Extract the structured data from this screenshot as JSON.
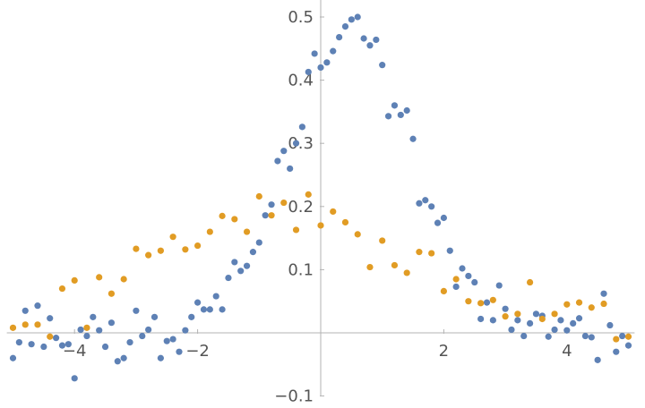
{
  "chart_data": {
    "type": "scatter",
    "title": "",
    "xlabel": "",
    "ylabel": "",
    "xlim": [
      -5.1,
      5.1
    ],
    "ylim": [
      -0.1,
      0.53
    ],
    "grid": false,
    "axes_origin": [
      0,
      0
    ],
    "x_ticks": [
      {
        "value": -4,
        "label": "−4"
      },
      {
        "value": -2,
        "label": "−2"
      },
      {
        "value": 2,
        "label": "2"
      },
      {
        "value": 4,
        "label": "4"
      }
    ],
    "y_ticks": [
      {
        "value": -0.1,
        "label": "−0.1"
      },
      {
        "value": 0.1,
        "label": "0.1"
      },
      {
        "value": 0.2,
        "label": "0.2"
      },
      {
        "value": 0.3,
        "label": "0.3"
      },
      {
        "value": 0.4,
        "label": "0.4"
      },
      {
        "value": 0.5,
        "label": "0.5"
      }
    ],
    "series": [
      {
        "color": "#5e81b5",
        "points": [
          [
            -5.0,
            -0.04
          ],
          [
            -4.9,
            -0.015
          ],
          [
            -4.8,
            0.035
          ],
          [
            -4.7,
            -0.018
          ],
          [
            -4.6,
            0.043
          ],
          [
            -4.5,
            -0.022
          ],
          [
            -4.4,
            0.023
          ],
          [
            -4.3,
            -0.008
          ],
          [
            -4.2,
            -0.02
          ],
          [
            -4.1,
            -0.018
          ],
          [
            -4.0,
            -0.072
          ],
          [
            -3.9,
            0.005
          ],
          [
            -3.8,
            -0.005
          ],
          [
            -3.7,
            0.025
          ],
          [
            -3.6,
            0.004
          ],
          [
            -3.5,
            -0.022
          ],
          [
            -3.4,
            0.016
          ],
          [
            -3.3,
            -0.045
          ],
          [
            -3.2,
            -0.04
          ],
          [
            -3.1,
            -0.015
          ],
          [
            -3.0,
            0.035
          ],
          [
            -2.9,
            -0.005
          ],
          [
            -2.8,
            0.005
          ],
          [
            -2.7,
            0.025
          ],
          [
            -2.6,
            -0.04
          ],
          [
            -2.5,
            -0.013
          ],
          [
            -2.4,
            -0.01
          ],
          [
            -2.3,
            -0.03
          ],
          [
            -2.2,
            0.004
          ],
          [
            -2.1,
            0.025
          ],
          [
            -2.0,
            0.048
          ],
          [
            -1.9,
            0.037
          ],
          [
            -1.8,
            0.037
          ],
          [
            -1.7,
            0.058
          ],
          [
            -1.6,
            0.037
          ],
          [
            -1.5,
            0.087
          ],
          [
            -1.4,
            0.112
          ],
          [
            -1.3,
            0.098
          ],
          [
            -1.2,
            0.106
          ],
          [
            -1.1,
            0.128
          ],
          [
            -1.0,
            0.143
          ],
          [
            -0.9,
            0.186
          ],
          [
            -0.8,
            0.203
          ],
          [
            -0.7,
            0.272
          ],
          [
            -0.6,
            0.288
          ],
          [
            -0.5,
            0.26
          ],
          [
            -0.4,
            0.3
          ],
          [
            -0.3,
            0.326
          ],
          [
            -0.2,
            0.413
          ],
          [
            -0.1,
            0.442
          ],
          [
            0.0,
            0.42
          ],
          [
            0.1,
            0.428
          ],
          [
            0.2,
            0.446
          ],
          [
            0.3,
            0.468
          ],
          [
            0.4,
            0.485
          ],
          [
            0.5,
            0.496
          ],
          [
            0.6,
            0.5
          ],
          [
            0.7,
            0.466
          ],
          [
            0.8,
            0.455
          ],
          [
            0.9,
            0.464
          ],
          [
            1.0,
            0.424
          ],
          [
            1.1,
            0.343
          ],
          [
            1.2,
            0.36
          ],
          [
            1.3,
            0.345
          ],
          [
            1.4,
            0.352
          ],
          [
            1.5,
            0.307
          ],
          [
            1.6,
            0.205
          ],
          [
            1.7,
            0.21
          ],
          [
            1.8,
            0.2
          ],
          [
            1.9,
            0.174
          ],
          [
            2.0,
            0.182
          ],
          [
            2.1,
            0.13
          ],
          [
            2.2,
            0.073
          ],
          [
            2.3,
            0.102
          ],
          [
            2.4,
            0.09
          ],
          [
            2.5,
            0.08
          ],
          [
            2.6,
            0.022
          ],
          [
            2.7,
            0.048
          ],
          [
            2.8,
            0.02
          ],
          [
            2.9,
            0.075
          ],
          [
            3.0,
            0.038
          ],
          [
            3.1,
            0.005
          ],
          [
            3.2,
            0.02
          ],
          [
            3.3,
            -0.005
          ],
          [
            3.4,
            0.015
          ],
          [
            3.5,
            0.03
          ],
          [
            3.6,
            0.027
          ],
          [
            3.7,
            -0.006
          ],
          [
            3.8,
            0.005
          ],
          [
            3.9,
            0.02
          ],
          [
            4.0,
            0.004
          ],
          [
            4.1,
            0.015
          ],
          [
            4.2,
            0.023
          ],
          [
            4.3,
            -0.005
          ],
          [
            4.4,
            -0.007
          ],
          [
            4.5,
            -0.043
          ],
          [
            4.6,
            0.062
          ],
          [
            4.7,
            0.012
          ],
          [
            4.8,
            -0.03
          ],
          [
            4.9,
            -0.005
          ],
          [
            5.0,
            -0.02
          ]
        ]
      },
      {
        "color": "#e19c24",
        "points": [
          [
            -5.0,
            0.008
          ],
          [
            -4.8,
            0.013
          ],
          [
            -4.6,
            0.013
          ],
          [
            -4.4,
            -0.006
          ],
          [
            -4.2,
            0.07
          ],
          [
            -4.0,
            0.083
          ],
          [
            -3.8,
            0.008
          ],
          [
            -3.6,
            0.088
          ],
          [
            -3.4,
            0.062
          ],
          [
            -3.2,
            0.085
          ],
          [
            -3.0,
            0.133
          ],
          [
            -2.8,
            0.123
          ],
          [
            -2.6,
            0.13
          ],
          [
            -2.4,
            0.152
          ],
          [
            -2.2,
            0.132
          ],
          [
            -2.0,
            0.138
          ],
          [
            -1.8,
            0.16
          ],
          [
            -1.6,
            0.185
          ],
          [
            -1.4,
            0.18
          ],
          [
            -1.2,
            0.16
          ],
          [
            -1.0,
            0.216
          ],
          [
            -0.8,
            0.186
          ],
          [
            -0.6,
            0.206
          ],
          [
            -0.4,
            0.163
          ],
          [
            -0.2,
            0.219
          ],
          [
            0.0,
            0.17
          ],
          [
            0.2,
            0.192
          ],
          [
            0.4,
            0.175
          ],
          [
            0.6,
            0.156
          ],
          [
            0.8,
            0.104
          ],
          [
            1.0,
            0.146
          ],
          [
            1.2,
            0.107
          ],
          [
            1.4,
            0.095
          ],
          [
            1.6,
            0.128
          ],
          [
            1.8,
            0.126
          ],
          [
            2.0,
            0.066
          ],
          [
            2.2,
            0.085
          ],
          [
            2.4,
            0.05
          ],
          [
            2.6,
            0.047
          ],
          [
            2.8,
            0.052
          ],
          [
            3.0,
            0.026
          ],
          [
            3.2,
            0.03
          ],
          [
            3.4,
            0.08
          ],
          [
            3.6,
            0.022
          ],
          [
            3.8,
            0.03
          ],
          [
            4.0,
            0.045
          ],
          [
            4.2,
            0.048
          ],
          [
            4.4,
            0.04
          ],
          [
            4.6,
            0.046
          ],
          [
            4.8,
            -0.01
          ],
          [
            5.0,
            -0.006
          ]
        ]
      }
    ]
  }
}
